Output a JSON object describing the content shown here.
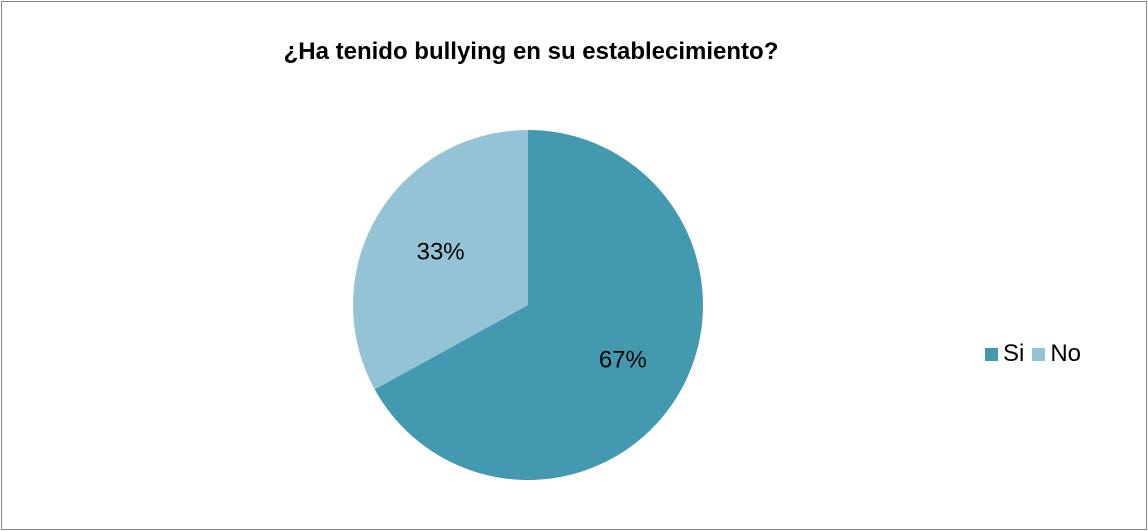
{
  "chart_data": {
    "type": "pie",
    "title": "¿Ha tenido bullying en su establecimiento?",
    "categories": [
      "Si",
      "No"
    ],
    "values": [
      67,
      33
    ],
    "data_labels": [
      "67%",
      "33%"
    ],
    "colors": [
      "#4299B0",
      "#93C3D4"
    ],
    "legend_position": "right",
    "start_angle_deg": 0,
    "direction": "clockwise"
  }
}
